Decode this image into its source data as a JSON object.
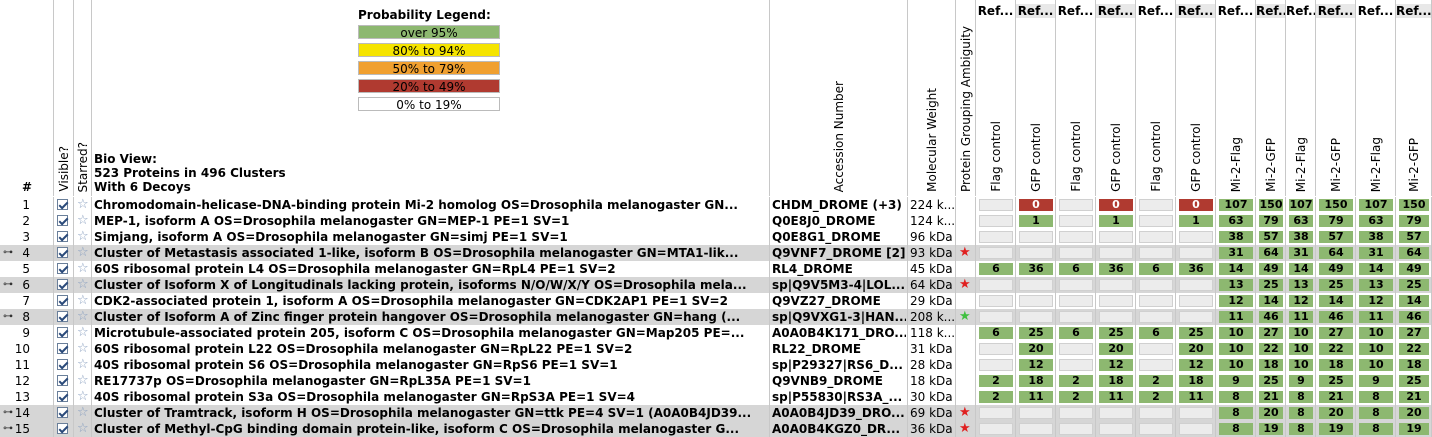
{
  "header": {
    "num_label": "#",
    "visible_label": "Visible?",
    "starred_label": "Starred?",
    "bio_view_line1": "Bio View:",
    "bio_view_line2": "523 Proteins in 496 Clusters",
    "bio_view_line3": "With 6 Decoys",
    "accession_label": "Accession Number",
    "mw_label": "Molecular Weight",
    "ambiguity_label": "Protein Grouping Ambiguity"
  },
  "legend": {
    "title": "Probability Legend:",
    "items": [
      {
        "label": "over 95%",
        "color": "#8db870"
      },
      {
        "label": "80% to 94%",
        "color": "#f5e400"
      },
      {
        "label": "50% to 79%",
        "color": "#f0a030"
      },
      {
        "label": "20% to  49%",
        "color": "#b03a30"
      },
      {
        "label": "0% to 19%",
        "color": "#ffffff"
      }
    ]
  },
  "colors": {
    "green": "#8db870",
    "red": "#b03a30",
    "selected_row": "#d6d6d6",
    "star_red": "#e02020",
    "star_green": "#40c040"
  },
  "samples": [
    {
      "title": "Ref...",
      "label": "Flag control"
    },
    {
      "title": "Ref...",
      "label": "GFP control"
    },
    {
      "title": "Ref...",
      "label": "Flag control"
    },
    {
      "title": "Ref...",
      "label": "GFP control"
    },
    {
      "title": "Ref...",
      "label": "Flag control"
    },
    {
      "title": "Ref...",
      "label": "GFP control"
    },
    {
      "title": "Ref...",
      "label": "Mi-2-Flag"
    },
    {
      "title": "Ref...",
      "label": "Mi-2-GFP"
    },
    {
      "title": "Ref...",
      "label": "Mi-2-Flag"
    },
    {
      "title": "Ref...",
      "label": "Mi-2-GFP"
    },
    {
      "title": "Ref...",
      "label": "Mi-2-Flag"
    },
    {
      "title": "Ref...",
      "label": "Mi-2-GFP"
    }
  ],
  "rows": [
    {
      "num": "1",
      "expand": false,
      "desc": "Chromodomain-helicase-DNA-binding protein Mi-2 homolog OS=Drosophila melanogaster GN...",
      "acc": "CHDM_DROME (+3)",
      "mw": "224 k...",
      "amb": "",
      "vals": [
        "",
        "0",
        "",
        "0",
        "",
        "0",
        "107",
        "150",
        "107",
        "150",
        "107",
        "150"
      ],
      "cols": [
        "",
        "red",
        "",
        "red",
        "",
        "red",
        "green",
        "green",
        "green",
        "green",
        "green",
        "green"
      ]
    },
    {
      "num": "2",
      "expand": false,
      "desc": "MEP-1, isoform A OS=Drosophila melanogaster GN=MEP-1 PE=1 SV=1",
      "acc": "Q0E8J0_DROME",
      "mw": "124 k...",
      "amb": "",
      "vals": [
        "",
        "1",
        "",
        "1",
        "",
        "1",
        "63",
        "79",
        "63",
        "79",
        "63",
        "79"
      ],
      "cols": [
        "",
        "green",
        "",
        "green",
        "",
        "green",
        "green",
        "green",
        "green",
        "green",
        "green",
        "green"
      ]
    },
    {
      "num": "3",
      "expand": false,
      "desc": "Simjang, isoform A OS=Drosophila melanogaster GN=simj PE=1 SV=1",
      "acc": "Q0E8G1_DROME",
      "mw": "96 kDa",
      "amb": "",
      "vals": [
        "",
        "",
        "",
        "",
        "",
        "",
        "38",
        "57",
        "38",
        "57",
        "38",
        "57"
      ],
      "cols": [
        "",
        "",
        "",
        "",
        "",
        "",
        "green",
        "green",
        "green",
        "green",
        "green",
        "green"
      ]
    },
    {
      "num": "4",
      "expand": true,
      "desc": "Cluster of Metastasis associated 1-like, isoform B OS=Drosophila melanogaster GN=MTA1-lik...",
      "acc": "Q9VNF7_DROME [2]",
      "mw": "93 kDa",
      "amb": "red",
      "vals": [
        "",
        "",
        "",
        "",
        "",
        "",
        "31",
        "64",
        "31",
        "64",
        "31",
        "64"
      ],
      "cols": [
        "",
        "",
        "",
        "",
        "",
        "",
        "green",
        "green",
        "green",
        "green",
        "green",
        "green"
      ]
    },
    {
      "num": "5",
      "expand": false,
      "desc": "60S ribosomal protein L4 OS=Drosophila melanogaster GN=RpL4 PE=1 SV=2",
      "acc": "RL4_DROME",
      "mw": "45 kDa",
      "amb": "",
      "vals": [
        "6",
        "36",
        "6",
        "36",
        "6",
        "36",
        "14",
        "49",
        "14",
        "49",
        "14",
        "49"
      ],
      "cols": [
        "green",
        "green",
        "green",
        "green",
        "green",
        "green",
        "green",
        "green",
        "green",
        "green",
        "green",
        "green"
      ]
    },
    {
      "num": "6",
      "expand": true,
      "desc": "Cluster of Isoform X of Longitudinals lacking protein, isoforms N/O/W/X/Y OS=Drosophila mela...",
      "acc": "sp|Q9V5M3-4|LOL...",
      "mw": "64 kDa",
      "amb": "red",
      "vals": [
        "",
        "",
        "",
        "",
        "",
        "",
        "13",
        "25",
        "13",
        "25",
        "13",
        "25"
      ],
      "cols": [
        "",
        "",
        "",
        "",
        "",
        "",
        "green",
        "green",
        "green",
        "green",
        "green",
        "green"
      ]
    },
    {
      "num": "7",
      "expand": false,
      "desc": "CDK2-associated protein 1, isoform A OS=Drosophila melanogaster GN=CDK2AP1 PE=1 SV=2",
      "acc": "Q9VZ27_DROME",
      "mw": "29 kDa",
      "amb": "",
      "vals": [
        "",
        "",
        "",
        "",
        "",
        "",
        "12",
        "14",
        "12",
        "14",
        "12",
        "14"
      ],
      "cols": [
        "",
        "",
        "",
        "",
        "",
        "",
        "green",
        "green",
        "green",
        "green",
        "green",
        "green"
      ]
    },
    {
      "num": "8",
      "expand": true,
      "desc": "Cluster of Isoform A of Zinc finger protein hangover OS=Drosophila melanogaster GN=hang (...",
      "acc": "sp|Q9VXG1-3|HAN...",
      "mw": "208 k...",
      "amb": "green",
      "vals": [
        "",
        "",
        "",
        "",
        "",
        "",
        "11",
        "46",
        "11",
        "46",
        "11",
        "46"
      ],
      "cols": [
        "",
        "",
        "",
        "",
        "",
        "",
        "green",
        "green",
        "green",
        "green",
        "green",
        "green"
      ]
    },
    {
      "num": "9",
      "expand": false,
      "desc": "Microtubule-associated protein 205, isoform C OS=Drosophila melanogaster GN=Map205 PE=...",
      "acc": "A0A0B4K171_DRO...",
      "mw": "118 k...",
      "amb": "",
      "vals": [
        "6",
        "25",
        "6",
        "25",
        "6",
        "25",
        "10",
        "27",
        "10",
        "27",
        "10",
        "27"
      ],
      "cols": [
        "green",
        "green",
        "green",
        "green",
        "green",
        "green",
        "green",
        "green",
        "green",
        "green",
        "green",
        "green"
      ]
    },
    {
      "num": "10",
      "expand": false,
      "desc": "60S ribosomal protein L22 OS=Drosophila melanogaster GN=RpL22 PE=1 SV=2",
      "acc": "RL22_DROME",
      "mw": "31 kDa",
      "amb": "",
      "vals": [
        "",
        "20",
        "",
        "20",
        "",
        "20",
        "10",
        "22",
        "10",
        "22",
        "10",
        "22"
      ],
      "cols": [
        "",
        "green",
        "",
        "green",
        "",
        "green",
        "green",
        "green",
        "green",
        "green",
        "green",
        "green"
      ]
    },
    {
      "num": "11",
      "expand": false,
      "desc": "40S ribosomal protein S6 OS=Drosophila melanogaster GN=RpS6 PE=1 SV=1",
      "acc": "sp|P29327|RS6_D...",
      "mw": "28 kDa",
      "amb": "",
      "vals": [
        "",
        "12",
        "",
        "12",
        "",
        "12",
        "10",
        "18",
        "10",
        "18",
        "10",
        "18"
      ],
      "cols": [
        "",
        "green",
        "",
        "green",
        "",
        "green",
        "green",
        "green",
        "green",
        "green",
        "green",
        "green"
      ]
    },
    {
      "num": "12",
      "expand": false,
      "desc": "RE17737p OS=Drosophila melanogaster GN=RpL35A PE=1 SV=1",
      "acc": "Q9VNB9_DROME",
      "mw": "18 kDa",
      "amb": "",
      "vals": [
        "2",
        "18",
        "2",
        "18",
        "2",
        "18",
        "9",
        "25",
        "9",
        "25",
        "9",
        "25"
      ],
      "cols": [
        "green",
        "green",
        "green",
        "green",
        "green",
        "green",
        "green",
        "green",
        "green",
        "green",
        "green",
        "green"
      ]
    },
    {
      "num": "13",
      "expand": false,
      "desc": "40S ribosomal protein S3a OS=Drosophila melanogaster GN=RpS3A PE=1 SV=4",
      "acc": "sp|P55830|RS3A_...",
      "mw": "30 kDa",
      "amb": "",
      "vals": [
        "2",
        "11",
        "2",
        "11",
        "2",
        "11",
        "8",
        "21",
        "8",
        "21",
        "8",
        "21"
      ],
      "cols": [
        "green",
        "green",
        "green",
        "green",
        "green",
        "green",
        "green",
        "green",
        "green",
        "green",
        "green",
        "green"
      ]
    },
    {
      "num": "14",
      "expand": true,
      "desc": "Cluster of Tramtrack, isoform H OS=Drosophila melanogaster GN=ttk PE=4 SV=1 (A0A0B4JD39...",
      "acc": "A0A0B4JD39_DRO...",
      "mw": "69 kDa",
      "amb": "red",
      "vals": [
        "",
        "",
        "",
        "",
        "",
        "",
        "8",
        "20",
        "8",
        "20",
        "8",
        "20"
      ],
      "cols": [
        "",
        "",
        "",
        "",
        "",
        "",
        "green",
        "green",
        "green",
        "green",
        "green",
        "green"
      ]
    },
    {
      "num": "15",
      "expand": true,
      "desc": "Cluster of Methyl-CpG binding domain protein-like, isoform C OS=Drosophila melanogaster G...",
      "acc": "A0A0B4KGZ0_DR...",
      "mw": "36 kDa",
      "amb": "red",
      "vals": [
        "",
        "",
        "",
        "",
        "",
        "",
        "8",
        "19",
        "8",
        "19",
        "8",
        "19"
      ],
      "cols": [
        "",
        "",
        "",
        "",
        "",
        "",
        "green",
        "green",
        "green",
        "green",
        "green",
        "green"
      ]
    }
  ]
}
